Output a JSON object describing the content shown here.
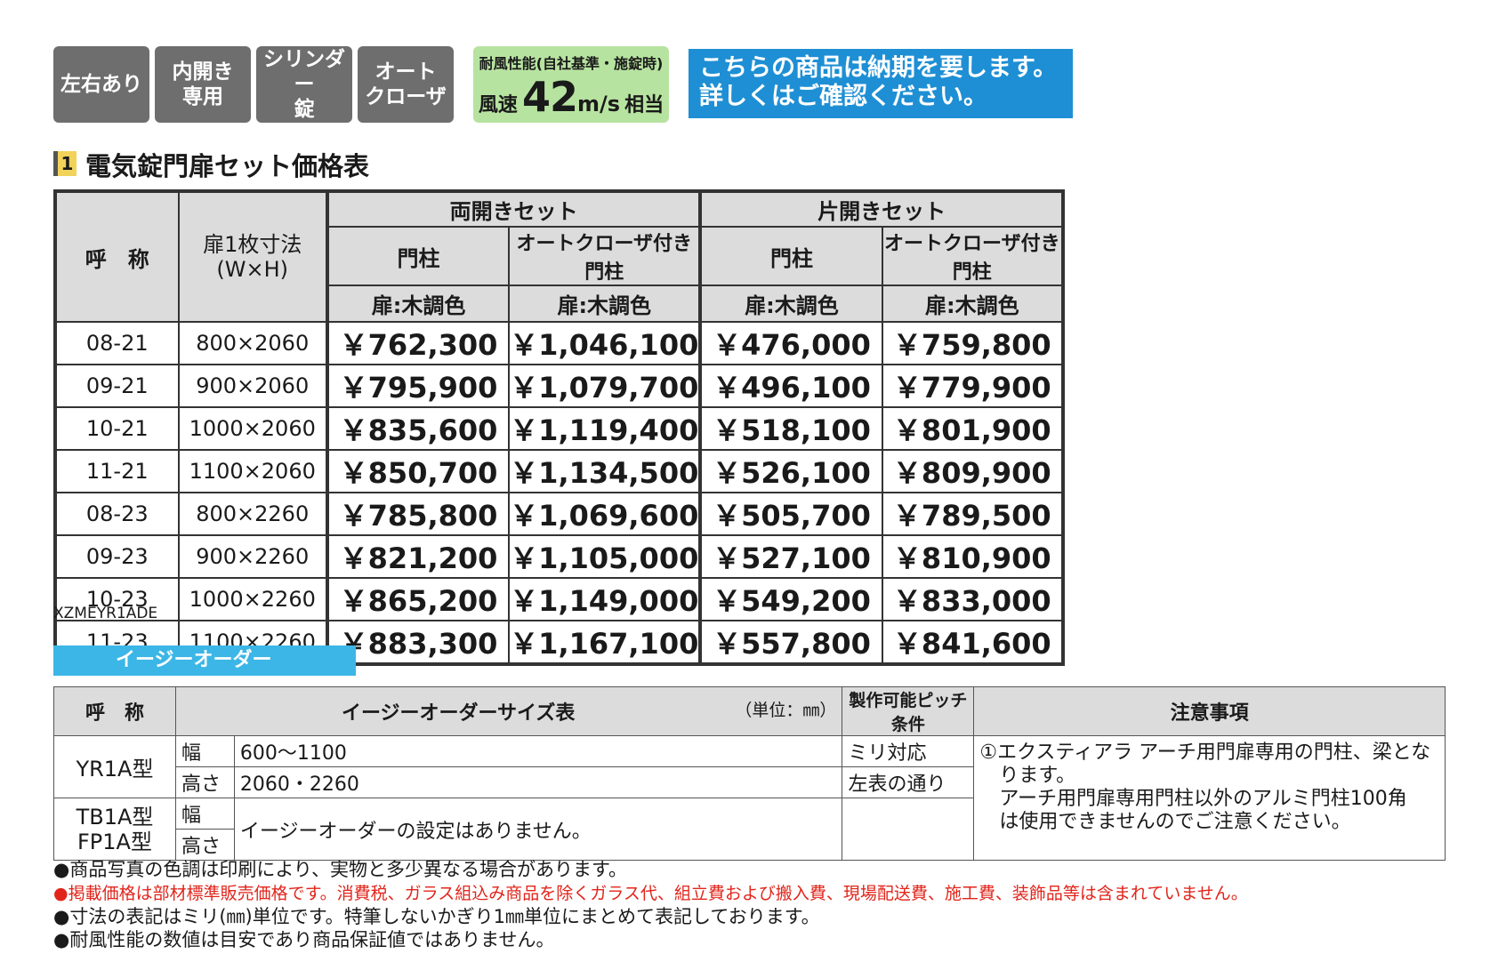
{
  "badges": [
    "左右あり",
    "内開き\n専用",
    "シリンダー\n錠",
    "オート\nクローザ"
  ],
  "wind": {
    "title": "耐風性能(自社基準・施錠時)",
    "prefix": "風速",
    "value": "42",
    "unit": "m/s",
    "suffix": "相当"
  },
  "notice": {
    "line1": "こちらの商品は納期を要します。",
    "line2": "詳しくはご確認ください。"
  },
  "section": {
    "number": "1",
    "title": "電気錠門扉セット価格表"
  },
  "price_table": {
    "head_name": "呼　称",
    "head_size": "扉1枚寸法\n(W×H)",
    "group_double": "両開きセット",
    "group_single": "片開きセット",
    "col_post": "門柱",
    "col_closer_post": "オートクローザ付き門柱",
    "col_color": "扉:木調色",
    "rows": [
      {
        "name": "08-21",
        "size": "800×2060",
        "v1": "￥762,300",
        "v2": "￥1,046,100",
        "v3": "￥476,000",
        "v4": "￥759,800"
      },
      {
        "name": "09-21",
        "size": "900×2060",
        "v1": "￥795,900",
        "v2": "￥1,079,700",
        "v3": "￥496,100",
        "v4": "￥779,900"
      },
      {
        "name": "10-21",
        "size": "1000×2060",
        "v1": "￥835,600",
        "v2": "￥1,119,400",
        "v3": "￥518,100",
        "v4": "￥801,900"
      },
      {
        "name": "11-21",
        "size": "1100×2060",
        "v1": "￥850,700",
        "v2": "￥1,134,500",
        "v3": "￥526,100",
        "v4": "￥809,900"
      },
      {
        "name": "08-23",
        "size": "800×2260",
        "v1": "￥785,800",
        "v2": "￥1,069,600",
        "v3": "￥505,700",
        "v4": "￥789,500"
      },
      {
        "name": "09-23",
        "size": "900×2260",
        "v1": "￥821,200",
        "v2": "￥1,105,000",
        "v3": "￥527,100",
        "v4": "￥810,900"
      },
      {
        "name": "10-23",
        "size": "1000×2260",
        "v1": "￥865,200",
        "v2": "￥1,149,000",
        "v3": "￥549,200",
        "v4": "￥833,000"
      },
      {
        "name": "11-23",
        "size": "1100×2260",
        "v1": "￥883,300",
        "v2": "￥1,167,100",
        "v3": "￥557,800",
        "v4": "￥841,600"
      }
    ]
  },
  "product_code": "XZMEYR1ADE",
  "easy_order": {
    "bar_label": "イージーオーダー",
    "head_name": "呼　称",
    "head_size": "イージーオーダーサイズ表",
    "head_unit": "（単位：㎜）",
    "head_pitch": "製作可能ピッチ条件",
    "head_notes": "注意事項",
    "yr_name": "YR1A型",
    "width_label": "幅",
    "height_label": "高さ",
    "yr_width": "600～1100",
    "yr_height": "2060・2260",
    "yr_pitch_w": "ミリ対応",
    "yr_pitch_h": "左表の通り",
    "tb_name1": "TB1A型",
    "tb_name2": "FP1A型",
    "tb_text": "イージーオーダーの設定はありません。",
    "note_line1": "①エクスティアラ アーチ用門扉専用の門柱、梁とな",
    "note_line2": "　ります。",
    "note_line3": "　アーチ用門扉専用門柱以外のアルミ門柱100角",
    "note_line4": "　は使用できませんのでご注意ください。"
  },
  "footnotes": [
    "●商品写真の色調は印刷により、実物と多少異なる場合があります。",
    "●掲載価格は部材標準販売価格です。消費税、ガラス組込み商品を除くガラス代、組立費および搬入費、現場配送費、施工費、装飾品等は含まれていません。",
    "●寸法の表記はミリ(㎜)単位です。特筆しないかぎり1㎜単位にまとめて表記しております。",
    "●耐風性能の数値は目安であり商品保証値ではありません。"
  ],
  "colors": {
    "badge": "#6e6e6e",
    "wind": "#b7e3a0",
    "notice": "#1e8fd4",
    "easy_bar": "#3cb6e6",
    "red": "#e1251b"
  }
}
